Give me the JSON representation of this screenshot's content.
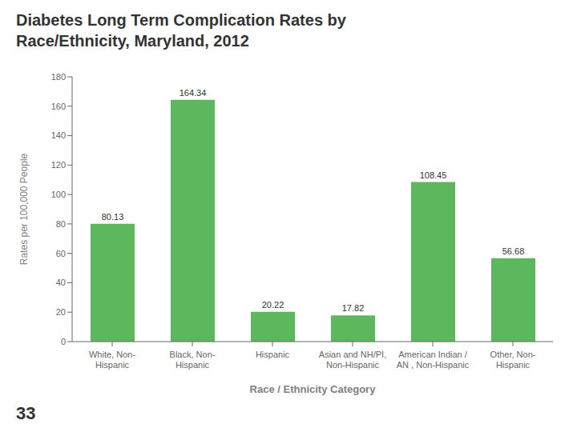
{
  "chart_data": {
    "type": "bar",
    "title": "Diabetes Long Term Complication Rates by\nRace/Ethnicity, Maryland, 2012",
    "categories": [
      "White, Non-\nHispanic",
      "Black, Non-\nHispanic",
      "Hispanic",
      "Asian and NH/PI,\nNon-Hispanic",
      "American Indian /\nAN , Non-Hispanic",
      "Other, Non-\nHispanic"
    ],
    "values": [
      80.13,
      164.34,
      20.22,
      17.82,
      108.45,
      56.68
    ],
    "color": "#5db85d",
    "xlabel": "Race / Ethnicity Category",
    "ylabel": "Rates per 100,000 People",
    "ylim": [
      0,
      180
    ],
    "yticks": [
      0,
      20,
      40,
      60,
      80,
      100,
      120,
      140,
      160,
      180
    ],
    "grid": false,
    "data_labels": true,
    "annotations": [
      "33"
    ]
  }
}
